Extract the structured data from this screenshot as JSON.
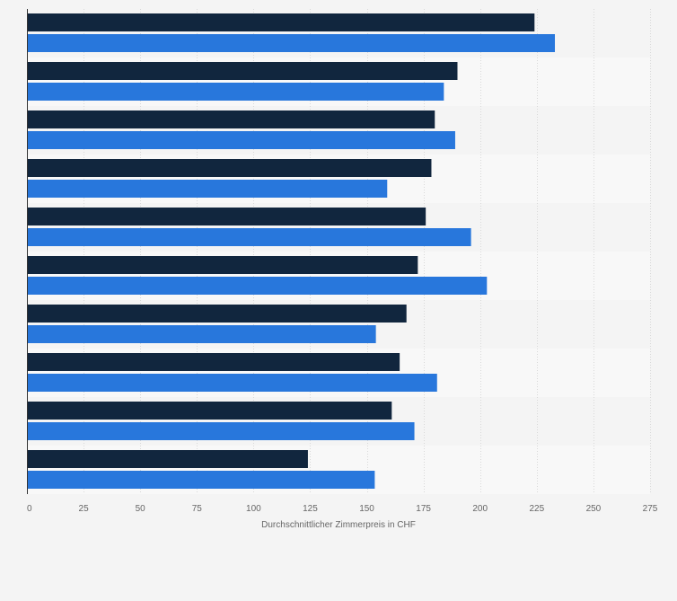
{
  "chart_data": {
    "type": "bar",
    "orientation": "horizontal",
    "categories": [
      "",
      "",
      "",
      "",
      "",
      "",
      "",
      "",
      "",
      ""
    ],
    "series": [
      {
        "color": "#11263e",
        "values": [
          224,
          190,
          180,
          178.5,
          176,
          172.5,
          167.5,
          164.5,
          161,
          124
        ]
      },
      {
        "color": "#2877dc",
        "values": [
          233,
          184,
          189,
          159,
          196,
          203,
          154,
          181,
          171,
          153.5
        ]
      }
    ],
    "xlabel": "Durchschnittlicher Zimmerpreis in CHF",
    "xlim": [
      0,
      275
    ],
    "xticks": [
      0,
      25,
      50,
      75,
      100,
      125,
      150,
      175,
      200,
      225,
      250,
      275
    ],
    "grid": true,
    "legend": "none"
  }
}
